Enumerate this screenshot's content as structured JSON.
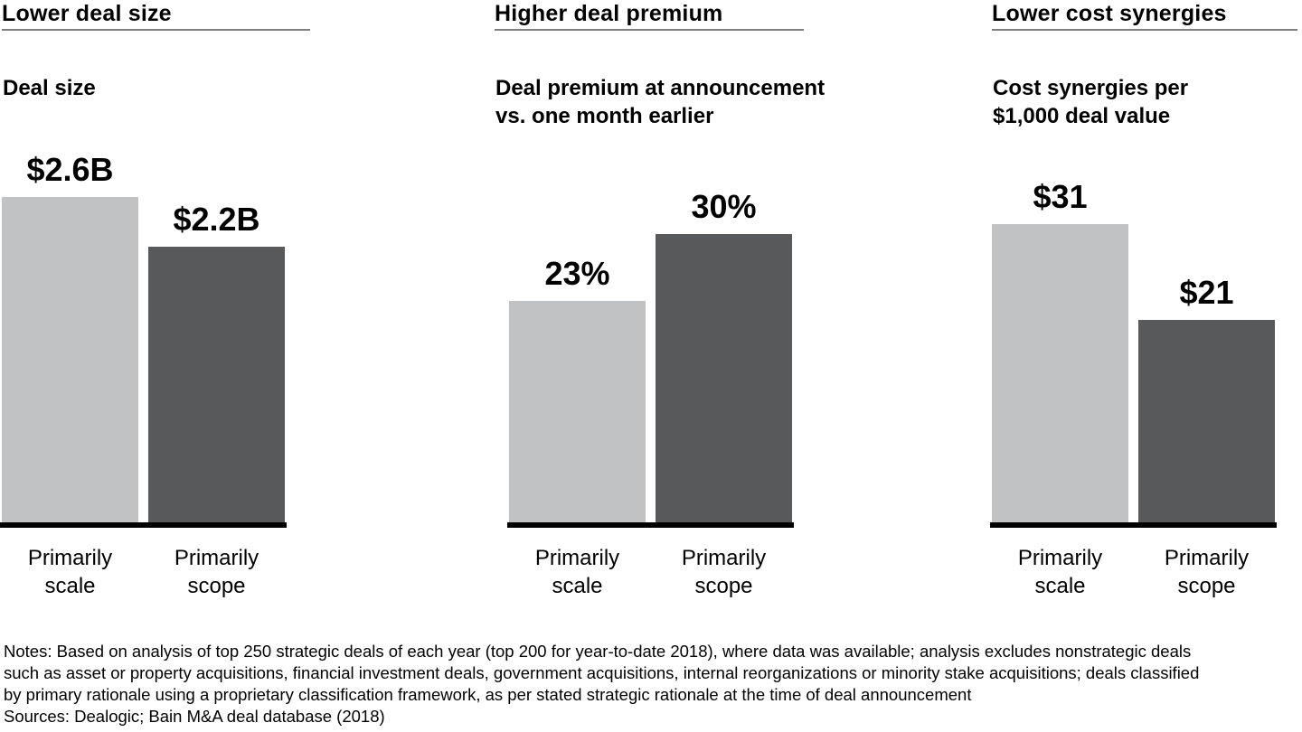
{
  "colors": {
    "scale_bar": "#c1c2c4",
    "scope_bar": "#58595b",
    "axis_line": "#000000",
    "title_rule": "#7f7f7f",
    "text": "#000000"
  },
  "chart_data": [
    {
      "type": "bar",
      "panel_title": "Lower deal size",
      "subtitle": "Deal size",
      "categories": [
        "Primarily\nscale",
        "Primarily\nscope"
      ],
      "values": [
        2.6,
        2.2
      ],
      "value_labels": [
        "$2.6B",
        "$2.2B"
      ],
      "ylim": [
        0,
        2.6
      ],
      "grid": false,
      "legend": false
    },
    {
      "type": "bar",
      "panel_title": "Higher deal premium",
      "subtitle": "Deal premium at announcement\nvs. one month earlier",
      "categories": [
        "Primarily\nscale",
        "Primarily\nscope"
      ],
      "values": [
        23,
        30
      ],
      "value_labels": [
        "23%",
        "30%"
      ],
      "ylim": [
        0,
        30
      ],
      "grid": false,
      "legend": false
    },
    {
      "type": "bar",
      "panel_title": "Lower cost synergies",
      "subtitle": "Cost synergies per\n$1,000 deal value",
      "categories": [
        "Primarily\nscale",
        "Primarily\nscope"
      ],
      "values": [
        31,
        21
      ],
      "value_labels": [
        "$31",
        "$21"
      ],
      "ylim": [
        0,
        31
      ],
      "grid": false,
      "legend": false
    }
  ],
  "footer": {
    "notes_lines": [
      "Notes: Based on analysis of top 250 strategic deals of each year (top 200 for year-to-date 2018), where data was available; analysis excludes nonstrategic deals",
      "such as asset or property acquisitions, financial investment deals, government acquisitions, internal reorganizations or minority stake acquisitions; deals classified",
      "by primary rationale using a proprietary classification framework, as per stated strategic rationale at the time of deal announcement"
    ],
    "sources": "Sources: Dealogic; Bain M&A deal database (2018)"
  }
}
